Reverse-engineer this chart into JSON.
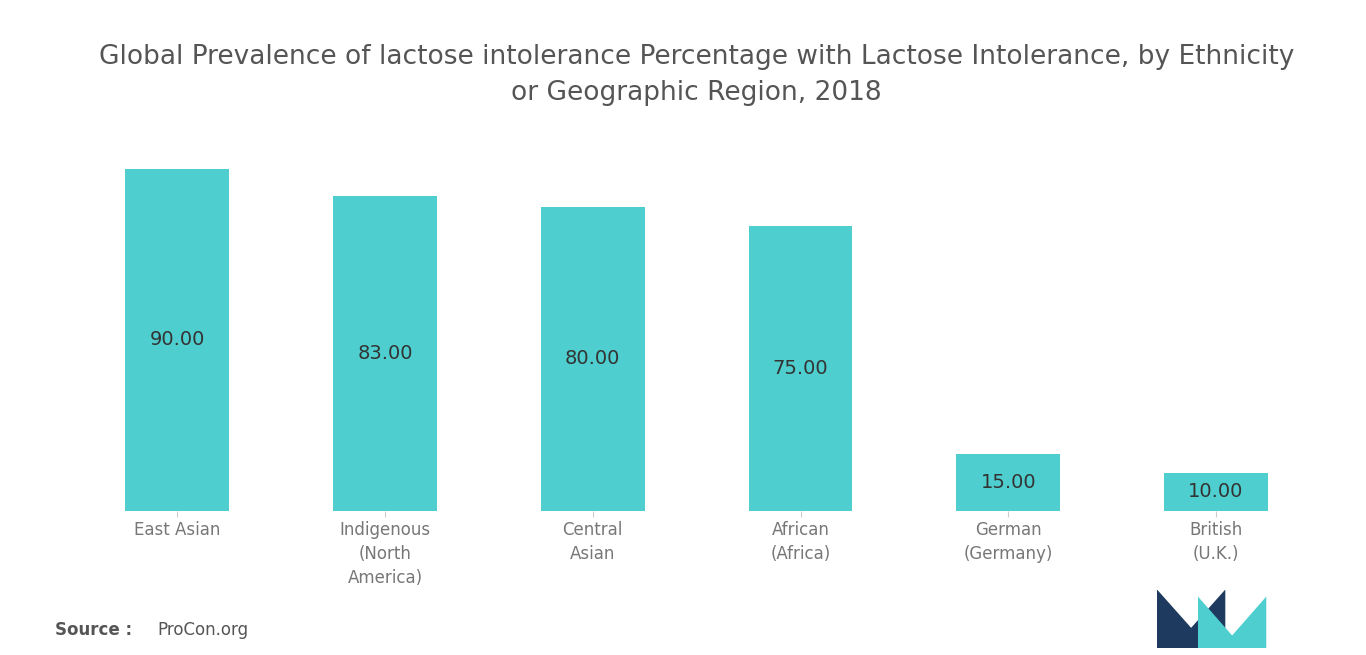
{
  "title": "Global Prevalence of lactose intolerance Percentage with Lactose Intolerance, by Ethnicity\nor Geographic Region, 2018",
  "categories": [
    "East Asian",
    "Indigenous\n(North\nAmerica)",
    "Central\nAsian",
    "African\n(Africa)",
    "German\n(Germany)",
    "British\n(U.K.)"
  ],
  "values": [
    90.0,
    83.0,
    80.0,
    75.0,
    15.0,
    10.0
  ],
  "bar_color": "#4ECECE",
  "label_color": "#333333",
  "background_color": "#ffffff",
  "source_bold": "Source :",
  "source_normal": "ProCon.org",
  "ylim": [
    0,
    100
  ],
  "bar_width": 0.5,
  "title_fontsize": 19,
  "label_fontsize": 14,
  "tick_fontsize": 12,
  "source_fontsize": 12,
  "tick_color": "#777777",
  "navy": "#1e3a5f",
  "teal_logo": "#4ECECE"
}
